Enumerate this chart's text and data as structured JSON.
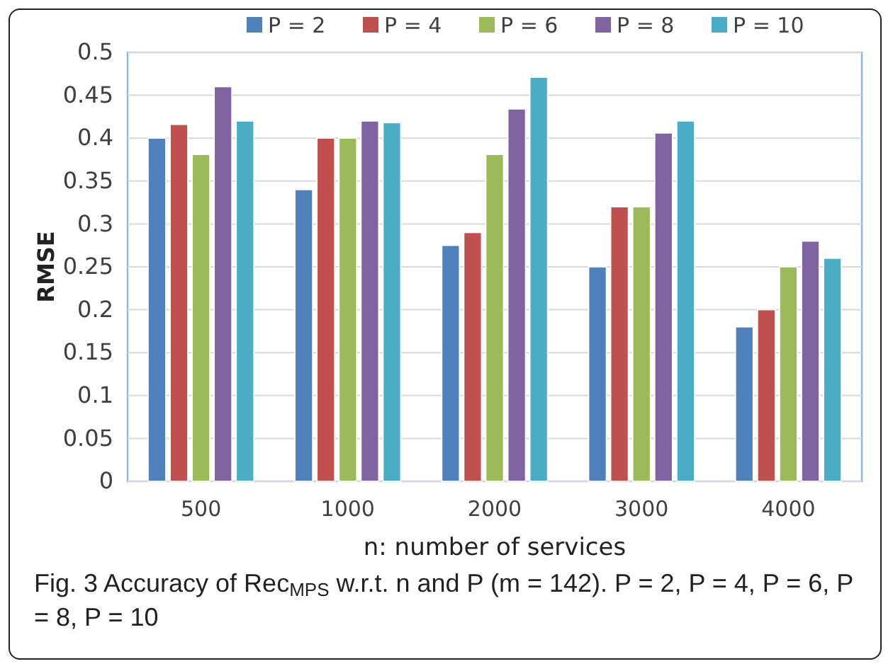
{
  "chart_data": {
    "type": "bar",
    "xlabel": "n: number of services",
    "ylabel": "RMSE",
    "categories": [
      "500",
      "1000",
      "2000",
      "3000",
      "4000"
    ],
    "series": [
      {
        "name": "P = 2",
        "color": "#4f81bd",
        "values": [
          0.4,
          0.34,
          0.275,
          0.25,
          0.18
        ]
      },
      {
        "name": "P = 4",
        "color": "#c0504d",
        "values": [
          0.416,
          0.4,
          0.29,
          0.32,
          0.2
        ]
      },
      {
        "name": "P = 6",
        "color": "#9bbb59",
        "values": [
          0.381,
          0.4,
          0.381,
          0.32,
          0.25
        ]
      },
      {
        "name": "P = 8",
        "color": "#8064a2",
        "values": [
          0.46,
          0.42,
          0.434,
          0.406,
          0.28
        ]
      },
      {
        "name": "P = 10",
        "color": "#4bacc6",
        "values": [
          0.42,
          0.418,
          0.471,
          0.42,
          0.26
        ]
      }
    ],
    "ylim": [
      0,
      0.5
    ],
    "yticks": [
      0,
      0.05,
      0.1,
      0.15,
      0.2,
      0.25,
      0.3,
      0.35,
      0.4,
      0.45,
      0.5
    ],
    "grid": "y",
    "legend": "top",
    "annotations": [
      "Fig. 3 Accuracy of Rec$_{MPS}$ w.r.t. n and P (m = 142). P = 2, P = 4, P = 6, P = 8, P = 10"
    ]
  }
}
